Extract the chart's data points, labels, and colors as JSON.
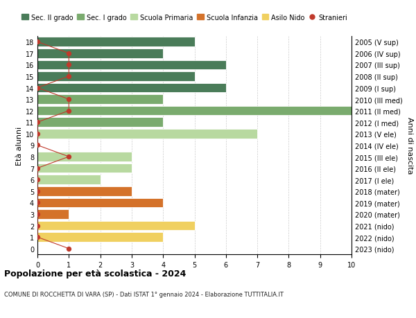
{
  "ages": [
    18,
    17,
    16,
    15,
    14,
    13,
    12,
    11,
    10,
    9,
    8,
    7,
    6,
    5,
    4,
    3,
    2,
    1,
    0
  ],
  "years_labels": [
    "2005 (V sup)",
    "2006 (IV sup)",
    "2007 (III sup)",
    "2008 (II sup)",
    "2009 (I sup)",
    "2010 (III med)",
    "2011 (II med)",
    "2012 (I med)",
    "2013 (V ele)",
    "2014 (IV ele)",
    "2015 (III ele)",
    "2016 (II ele)",
    "2017 (I ele)",
    "2018 (mater)",
    "2019 (mater)",
    "2020 (mater)",
    "2021 (nido)",
    "2022 (nido)",
    "2023 (nido)"
  ],
  "bar_values": [
    5,
    4,
    6,
    5,
    6,
    4,
    10,
    4,
    7,
    0,
    3,
    3,
    2,
    3,
    4,
    1,
    5,
    4,
    0
  ],
  "bar_colors": [
    "#4a7c59",
    "#4a7c59",
    "#4a7c59",
    "#4a7c59",
    "#4a7c59",
    "#7aab6e",
    "#7aab6e",
    "#7aab6e",
    "#b8d9a0",
    "#b8d9a0",
    "#b8d9a0",
    "#b8d9a0",
    "#b8d9a0",
    "#d4722a",
    "#d4722a",
    "#d4722a",
    "#f0d060",
    "#f0d060",
    "#f0d060"
  ],
  "stranieri_x": [
    0,
    1,
    1,
    1,
    0,
    1,
    1,
    0,
    0,
    0,
    1,
    0,
    0,
    0,
    0,
    0,
    0,
    0,
    1
  ],
  "legend_labels": [
    "Sec. II grado",
    "Sec. I grado",
    "Scuola Primaria",
    "Scuola Infanzia",
    "Asilo Nido",
    "Stranieri"
  ],
  "legend_colors": [
    "#4a7c59",
    "#7aab6e",
    "#b8d9a0",
    "#d4722a",
    "#f0d060",
    "#c0392b"
  ],
  "title": "Popolazione per età scolastica - 2024",
  "subtitle": "COMUNE DI ROCCHETTA DI VARA (SP) - Dati ISTAT 1° gennaio 2024 - Elaborazione TUTTITALIA.IT",
  "ylabel_left": "Età alunni",
  "ylabel_right": "Anni di nascita",
  "xlim": [
    0,
    10
  ],
  "grid_color": "#cccccc",
  "stranieri_color": "#c0392b"
}
